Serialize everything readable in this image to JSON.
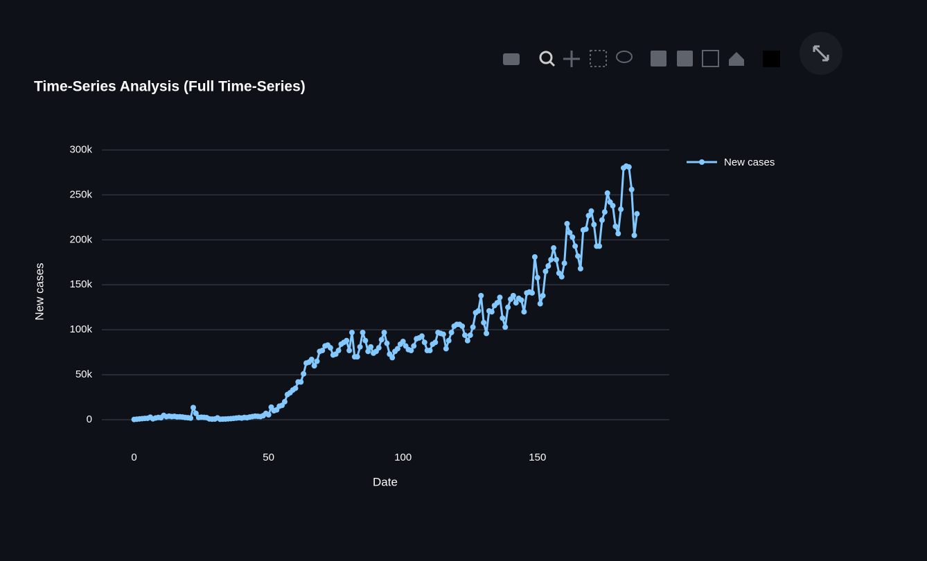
{
  "chart_data": {
    "type": "line",
    "title": "Time-Series Analysis (Full Time-Series)",
    "x_label": "Date",
    "y_label": "New cases",
    "x": [
      0,
      1,
      2,
      3,
      4,
      5,
      6,
      7,
      8,
      9,
      10,
      11,
      12,
      13,
      14,
      15,
      16,
      17,
      18,
      19,
      20,
      21,
      22,
      23,
      24,
      25,
      26,
      27,
      28,
      29,
      30,
      31,
      32,
      33,
      34,
      35,
      36,
      37,
      38,
      39,
      40,
      41,
      42,
      43,
      44,
      45,
      46,
      47,
      48,
      49,
      50,
      51,
      52,
      53,
      54,
      55,
      56,
      57,
      58,
      59,
      60,
      61,
      62,
      63,
      64,
      65,
      66,
      67,
      68,
      69,
      70,
      71,
      72,
      73,
      74,
      75,
      76,
      77,
      78,
      79,
      80,
      81,
      82,
      83,
      84,
      85,
      86,
      87,
      88,
      89,
      90,
      91,
      92,
      93,
      94,
      95,
      96,
      97,
      98,
      99,
      100,
      101,
      102,
      103,
      104,
      105,
      106,
      107,
      108,
      109,
      110,
      111,
      112,
      113,
      114,
      115,
      116,
      117,
      118,
      119,
      120,
      121,
      122,
      123,
      124,
      125,
      126,
      127,
      128,
      129,
      130,
      131,
      132,
      133,
      134,
      135,
      136,
      137,
      138,
      139,
      140,
      141,
      142,
      143,
      144,
      145,
      146,
      147,
      148,
      149,
      150,
      151,
      152,
      153,
      154,
      155,
      156,
      157,
      158,
      159,
      160,
      161,
      162,
      163,
      164,
      165,
      166,
      167,
      168,
      169,
      170,
      171,
      172,
      173,
      174,
      175,
      176,
      177,
      178,
      179,
      180,
      181,
      182,
      183,
      184,
      185,
      186,
      187
    ],
    "series": [
      {
        "name": "New cases",
        "color": "#83c9ff",
        "values": [
          300,
          600,
          900,
          1200,
          1500,
          1600,
          2800,
          1000,
          1900,
          2500,
          2200,
          4800,
          3400,
          4000,
          3500,
          3800,
          3200,
          3300,
          3000,
          2500,
          2200,
          1800,
          13500,
          7000,
          2500,
          2800,
          2600,
          2300,
          900,
          700,
          800,
          2000,
          600,
          700,
          800,
          1000,
          1200,
          1500,
          1800,
          2200,
          1800,
          2500,
          2200,
          3000,
          3500,
          4000,
          3800,
          3500,
          4500,
          7000,
          5500,
          14000,
          10000,
          11000,
          15000,
          16000,
          20000,
          28000,
          30000,
          33000,
          35000,
          42000,
          42000,
          51000,
          63000,
          64000,
          67000,
          60000,
          65000,
          76000,
          77000,
          82000,
          83000,
          80000,
          72000,
          73000,
          77000,
          84000,
          86000,
          88000,
          77000,
          97000,
          70000,
          70000,
          81000,
          97000,
          88000,
          76000,
          81000,
          74000,
          76000,
          80000,
          89000,
          97000,
          85000,
          73000,
          69000,
          76000,
          79000,
          84000,
          87000,
          82000,
          78000,
          77000,
          82000,
          90000,
          91000,
          93000,
          86000,
          77000,
          77000,
          84000,
          86000,
          97000,
          96000,
          95000,
          79000,
          88000,
          97000,
          104000,
          106000,
          106000,
          104000,
          94000,
          88000,
          94000,
          103000,
          119000,
          121000,
          138000,
          108000,
          96000,
          121000,
          120000,
          127000,
          130000,
          136000,
          113000,
          103000,
          125000,
          134000,
          138000,
          130000,
          135000,
          133000,
          120000,
          141000,
          142000,
          141000,
          181000,
          158000,
          129000,
          138000,
          165000,
          171000,
          178000,
          191000,
          178000,
          163000,
          159000,
          174000,
          218000,
          208000,
          203000,
          193000,
          182000,
          168000,
          211000,
          212000,
          227000,
          232000,
          217000,
          193000,
          193000,
          222000,
          231000,
          252000,
          242000,
          238000,
          215000,
          207000,
          234000,
          280000,
          282000,
          281000,
          256000,
          205000,
          229000
        ]
      }
    ],
    "xlim": [
      -12,
      199
    ],
    "xticks": [
      0,
      50,
      100,
      150
    ],
    "ylim": [
      -15000,
      310000
    ],
    "yticks": [
      0,
      {
        "value": 50000,
        "label": "50k"
      },
      {
        "value": 100000,
        "label": "100k"
      },
      {
        "value": 150000,
        "label": "150k"
      },
      {
        "value": 200000,
        "label": "200k"
      },
      {
        "value": 250000,
        "label": "250k"
      },
      {
        "value": 300000,
        "label": "300k"
      }
    ],
    "grid": true,
    "legend": "right"
  }
}
